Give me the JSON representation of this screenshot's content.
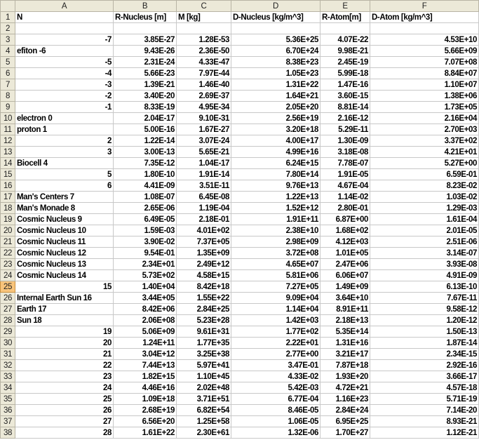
{
  "columns": [
    "A",
    "B",
    "C",
    "D",
    "E",
    "F"
  ],
  "selected_row": 25,
  "colors": {
    "header_bg": "#ece9d8",
    "selected_header": "#f8c47c",
    "grid": "#c8c8c8"
  },
  "rows": [
    [
      "N",
      "R-Nucleus [m]",
      "M [kg]",
      "D-Nucleus [kg/m^3]",
      "R-Atom[m]",
      "D-Atom [kg/m^3]"
    ],
    [
      "",
      "",
      "",
      "",
      "",
      ""
    ],
    [
      "-7",
      "3.85E-27",
      "1.28E-53",
      "5.36E+25",
      "4.07E-22",
      "4.53E+10"
    ],
    [
      "efiton -6",
      "9.43E-26",
      "2.36E-50",
      "6.70E+24",
      "9.98E-21",
      "5.66E+09"
    ],
    [
      "-5",
      "2.31E-24",
      "4.33E-47",
      "8.38E+23",
      "2.45E-19",
      "7.07E+08"
    ],
    [
      "-4",
      "5.66E-23",
      "7.97E-44",
      "1.05E+23",
      "5.99E-18",
      "8.84E+07"
    ],
    [
      "-3",
      "1.39E-21",
      "1.46E-40",
      "1.31E+22",
      "1.47E-16",
      "1.10E+07"
    ],
    [
      "-2",
      "3.40E-20",
      "2.69E-37",
      "1.64E+21",
      "3.60E-15",
      "1.38E+06"
    ],
    [
      "-1",
      "8.33E-19",
      "4.95E-34",
      "2.05E+20",
      "8.81E-14",
      "1.73E+05"
    ],
    [
      "electron 0",
      "2.04E-17",
      "9.10E-31",
      "2.56E+19",
      "2.16E-12",
      "2.16E+04"
    ],
    [
      "proton 1",
      "5.00E-16",
      "1.67E-27",
      "3.20E+18",
      "5.29E-11",
      "2.70E+03"
    ],
    [
      "2",
      "1.22E-14",
      "3.07E-24",
      "4.00E+17",
      "1.30E-09",
      "3.37E+02"
    ],
    [
      "3",
      "3.00E-13",
      "5.65E-21",
      "4.99E+16",
      "3.18E-08",
      "4.21E+01"
    ],
    [
      "Biocell 4",
      "7.35E-12",
      "1.04E-17",
      "6.24E+15",
      "7.78E-07",
      "5.27E+00"
    ],
    [
      "5",
      "1.80E-10",
      "1.91E-14",
      "7.80E+14",
      "1.91E-05",
      "6.59E-01"
    ],
    [
      "6",
      "4.41E-09",
      "3.51E-11",
      "9.76E+13",
      "4.67E-04",
      "8.23E-02"
    ],
    [
      "Man's Centers 7",
      "1.08E-07",
      "6.45E-08",
      "1.22E+13",
      "1.14E-02",
      "1.03E-02"
    ],
    [
      "Man's Monade 8",
      "2.65E-06",
      "1.19E-04",
      "1.52E+12",
      "2.80E-01",
      "1.29E-03"
    ],
    [
      "Cosmic Nucleus 9",
      "6.49E-05",
      "2.18E-01",
      "1.91E+11",
      "6.87E+00",
      "1.61E-04"
    ],
    [
      "Cosmic Nucleus 10",
      "1.59E-03",
      "4.01E+02",
      "2.38E+10",
      "1.68E+02",
      "2.01E-05"
    ],
    [
      "Cosmic Nucleus 11",
      "3.90E-02",
      "7.37E+05",
      "2.98E+09",
      "4.12E+03",
      "2.51E-06"
    ],
    [
      "Cosmic Nucleus 12",
      "9.54E-01",
      "1.35E+09",
      "3.72E+08",
      "1.01E+05",
      "3.14E-07"
    ],
    [
      "Cosmic Nucleus 13",
      "2.34E+01",
      "2.49E+12",
      "4.65E+07",
      "2.47E+06",
      "3.93E-08"
    ],
    [
      "Cosmic Nucleus 14",
      "5.73E+02",
      "4.58E+15",
      "5.81E+06",
      "6.06E+07",
      "4.91E-09"
    ],
    [
      "15",
      "1.40E+04",
      "8.42E+18",
      "7.27E+05",
      "1.49E+09",
      "6.13E-10"
    ],
    [
      "Internal Earth Sun 16",
      "3.44E+05",
      "1.55E+22",
      "9.09E+04",
      "3.64E+10",
      "7.67E-11"
    ],
    [
      "Earth 17",
      "8.42E+06",
      "2.84E+25",
      "1.14E+04",
      "8.91E+11",
      "9.58E-12"
    ],
    [
      "Sun 18",
      "2.06E+08",
      "5.23E+28",
      "1.42E+03",
      "2.18E+13",
      "1.20E-12"
    ],
    [
      "19",
      "5.06E+09",
      "9.61E+31",
      "1.77E+02",
      "5.35E+14",
      "1.50E-13"
    ],
    [
      "20",
      "1.24E+11",
      "1.77E+35",
      "2.22E+01",
      "1.31E+16",
      "1.87E-14"
    ],
    [
      "21",
      "3.04E+12",
      "3.25E+38",
      "2.77E+00",
      "3.21E+17",
      "2.34E-15"
    ],
    [
      "22",
      "7.44E+13",
      "5.97E+41",
      "3.47E-01",
      "7.87E+18",
      "2.92E-16"
    ],
    [
      "23",
      "1.82E+15",
      "1.10E+45",
      "4.33E-02",
      "1.93E+20",
      "3.66E-17"
    ],
    [
      "24",
      "4.46E+16",
      "2.02E+48",
      "5.42E-03",
      "4.72E+21",
      "4.57E-18"
    ],
    [
      "25",
      "1.09E+18",
      "3.71E+51",
      "6.77E-04",
      "1.16E+23",
      "5.71E-19"
    ],
    [
      "26",
      "2.68E+19",
      "6.82E+54",
      "8.46E-05",
      "2.84E+24",
      "7.14E-20"
    ],
    [
      "27",
      "6.56E+20",
      "1.25E+58",
      "1.06E-05",
      "6.95E+25",
      "8.93E-21"
    ],
    [
      "28",
      "1.61E+22",
      "2.30E+61",
      "1.32E-06",
      "1.70E+27",
      "1.12E-21"
    ]
  ]
}
